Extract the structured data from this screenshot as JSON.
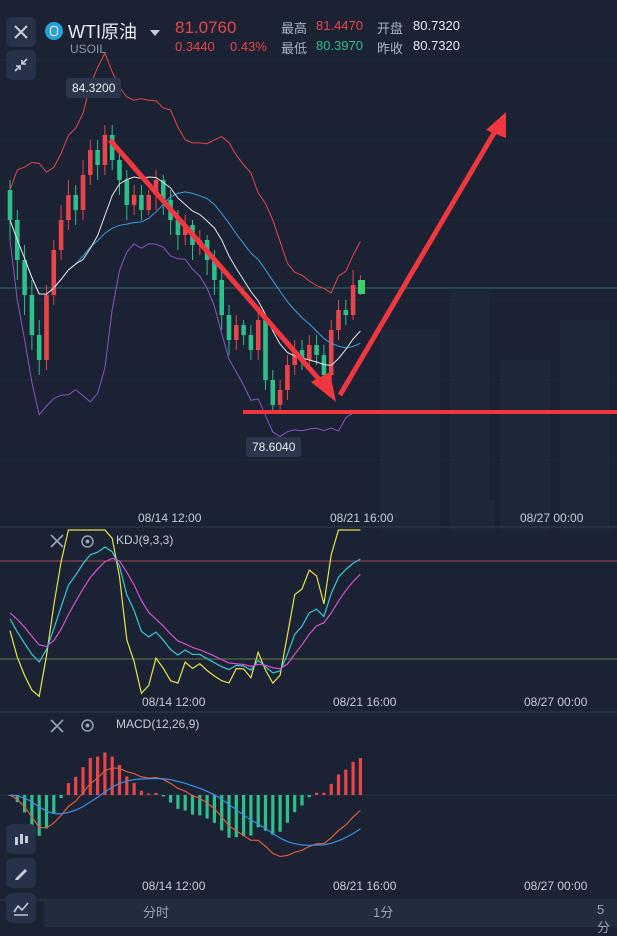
{
  "header": {
    "symbol": "WTI原油",
    "code": "USOIL",
    "price": "81.0760",
    "change": "0.3440",
    "change_pct": "0.43%",
    "high_label": "最高",
    "high": "81.4470",
    "low_label": "最低",
    "low": "80.3970",
    "open_label": "开盘",
    "open": "80.7320",
    "prev_label": "昨收",
    "prev_close": "80.7320"
  },
  "price_chart": {
    "high_marker": "84.3200",
    "low_marker": "78.6040",
    "x_ticks": [
      "08/14 12:00",
      "08/21 16:00",
      "08/27 00:00"
    ]
  },
  "kdj": {
    "title": "KDJ(9,3,3)",
    "x_ticks": [
      "08/14 12:00",
      "08/21 16:00",
      "08/27 00:00"
    ]
  },
  "macd": {
    "title": "MACD(12,26,9)",
    "x_ticks": [
      "08/14 12:00",
      "08/21 16:00",
      "08/27 00:00"
    ]
  },
  "tabs": [
    "分时",
    "1分",
    "5分"
  ],
  "icons": [
    "close-icon",
    "shrink-icon",
    "dropdown-icon",
    "candlestick-icon",
    "pen-icon",
    "indicator-icon",
    "settings-icon"
  ],
  "colors": {
    "up": "#e8454a",
    "down": "#2fbf8a",
    "background": "#1a2233",
    "arrow": "#f0363e",
    "boll_mid": "#e6e6ea",
    "boll_band": "#8a54c9",
    "ma": "#3a9fe8"
  },
  "candles": [
    [
      83.0,
      82.4,
      83.2,
      82.0
    ],
    [
      82.4,
      81.6,
      82.6,
      81.2
    ],
    [
      81.6,
      80.9,
      81.9,
      80.5
    ],
    [
      80.9,
      80.1,
      81.2,
      79.8
    ],
    [
      80.1,
      79.6,
      80.4,
      79.3
    ],
    [
      79.6,
      80.9,
      81.1,
      79.4
    ],
    [
      80.9,
      81.8,
      82.0,
      80.7
    ],
    [
      81.8,
      82.4,
      82.7,
      81.6
    ],
    [
      82.4,
      82.9,
      83.2,
      82.2
    ],
    [
      82.9,
      82.6,
      83.1,
      82.3
    ],
    [
      82.6,
      83.3,
      83.6,
      82.4
    ],
    [
      83.3,
      83.8,
      84.0,
      83.1
    ],
    [
      83.8,
      83.5,
      84.0,
      83.2
    ],
    [
      83.5,
      84.1,
      84.3,
      83.3
    ],
    [
      84.1,
      83.6,
      84.3,
      83.4
    ],
    [
      83.6,
      83.2,
      83.8,
      82.9
    ],
    [
      83.2,
      82.7,
      83.4,
      82.4
    ],
    [
      82.7,
      82.9,
      83.1,
      82.5
    ],
    [
      82.9,
      82.6,
      83.1,
      82.4
    ],
    [
      82.6,
      82.9,
      83.0,
      82.5
    ],
    [
      82.9,
      83.2,
      83.4,
      82.6
    ],
    [
      83.2,
      82.8,
      83.3,
      82.5
    ],
    [
      82.8,
      82.4,
      83.0,
      82.1
    ],
    [
      82.4,
      82.1,
      82.6,
      81.8
    ],
    [
      82.1,
      82.3,
      82.5,
      81.9
    ],
    [
      82.3,
      81.9,
      82.4,
      81.6
    ],
    [
      81.9,
      82.0,
      82.2,
      81.7
    ],
    [
      82.0,
      81.6,
      82.1,
      81.3
    ],
    [
      81.6,
      81.2,
      81.8,
      80.9
    ],
    [
      81.2,
      80.5,
      81.4,
      80.2
    ],
    [
      80.5,
      80.0,
      80.7,
      79.7
    ],
    [
      80.0,
      80.3,
      80.5,
      79.8
    ],
    [
      80.3,
      80.1,
      80.4,
      79.9
    ],
    [
      80.1,
      79.8,
      80.3,
      79.6
    ],
    [
      79.8,
      80.4,
      80.6,
      79.6
    ],
    [
      80.4,
      79.2,
      80.5,
      79.0
    ],
    [
      79.2,
      78.7,
      79.4,
      78.6
    ],
    [
      78.7,
      79.0,
      79.2,
      78.6
    ],
    [
      79.0,
      79.5,
      79.7,
      78.8
    ],
    [
      79.5,
      79.8,
      80.0,
      79.3
    ],
    [
      79.8,
      79.6,
      80.0,
      79.4
    ],
    [
      79.6,
      79.9,
      80.1,
      79.5
    ],
    [
      79.9,
      79.7,
      80.1,
      79.5
    ],
    [
      79.7,
      79.3,
      79.9,
      79.1
    ],
    [
      79.3,
      80.2,
      80.4,
      79.2
    ],
    [
      80.2,
      80.6,
      80.8,
      80.0
    ],
    [
      80.6,
      80.5,
      80.8,
      80.3
    ],
    [
      80.5,
      81.1,
      81.4,
      80.4
    ],
    [
      81.1,
      81.1,
      81.3,
      80.9
    ]
  ]
}
